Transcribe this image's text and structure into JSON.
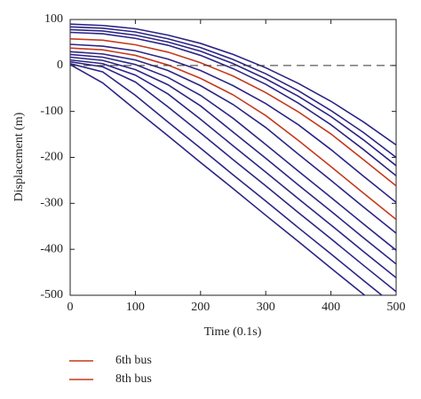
{
  "chart_data": {
    "type": "line",
    "xlabel": "Time (0.1s)",
    "ylabel": "Displacement (m)",
    "x": [
      0,
      50,
      100,
      150,
      200,
      250,
      300,
      350,
      400,
      450,
      500
    ],
    "xlim": [
      0,
      500
    ],
    "xticks": [
      0,
      100,
      200,
      300,
      400,
      500
    ],
    "ylim": [
      -500,
      100
    ],
    "yticks": [
      -500,
      -400,
      -300,
      -200,
      -100,
      0,
      100
    ],
    "reference_line": 0,
    "series": [
      {
        "color": "#2b2585",
        "values": [
          90,
          87,
          80,
          66,
          48,
          24,
          -5,
          -39,
          -78,
          -123,
          -173
        ]
      },
      {
        "color": "#2b2585",
        "values": [
          84,
          81,
          73,
          58,
          39,
          13,
          -18,
          -55,
          -98,
          -146,
          -200
        ]
      },
      {
        "color": "#2b2585",
        "values": [
          78,
          75,
          66,
          51,
          31,
          4,
          -29,
          -67,
          -111,
          -162,
          -218
        ]
      },
      {
        "color": "#2b2585",
        "values": [
          72,
          69,
          59,
          44,
          22,
          -7,
          -41,
          -82,
          -129,
          -183,
          -240
        ]
      },
      {
        "name": "6th bus",
        "color": "#c43a1e",
        "values": [
          58,
          55,
          45,
          29,
          6,
          -23,
          -59,
          -101,
          -149,
          -205,
          -262
        ]
      },
      {
        "color": "#2b2585",
        "values": [
          46,
          42,
          32,
          14,
          -11,
          -44,
          -83,
          -129,
          -183,
          -241,
          -298
        ]
      },
      {
        "name": "8th bus",
        "color": "#c43a1e",
        "values": [
          38,
          34,
          22,
          1,
          -28,
          -64,
          -109,
          -163,
          -220,
          -278,
          -335
        ]
      },
      {
        "color": "#2b2585",
        "values": [
          30,
          25,
          12,
          -11,
          -44,
          -85,
          -135,
          -193,
          -250,
          -308,
          -365
        ]
      },
      {
        "color": "#2b2585",
        "values": [
          24,
          18,
          2,
          -26,
          -65,
          -115,
          -172,
          -230,
          -287,
          -345,
          -402
        ]
      },
      {
        "color": "#2b2585",
        "values": [
          18,
          11,
          -9,
          -42,
          -88,
          -145,
          -202,
          -260,
          -317,
          -375,
          -432
        ]
      },
      {
        "color": "#2b2585",
        "values": [
          12,
          4,
          -21,
          -62,
          -117,
          -175,
          -232,
          -290,
          -347,
          -405,
          -462
        ]
      },
      {
        "color": "#2b2585",
        "values": [
          8,
          -3,
          -36,
          -90,
          -147,
          -205,
          -262,
          -320,
          -377,
          -435,
          -492
        ]
      },
      {
        "color": "#2b2585",
        "values": [
          4,
          -14,
          -65,
          -123,
          -180,
          -238,
          -295,
          -353,
          -410,
          -468,
          -525
        ]
      },
      {
        "color": "#2b2585",
        "values": [
          2,
          -38,
          -96,
          -153,
          -211,
          -268,
          -326,
          -383,
          -441,
          -498,
          -556
        ]
      }
    ]
  }
}
